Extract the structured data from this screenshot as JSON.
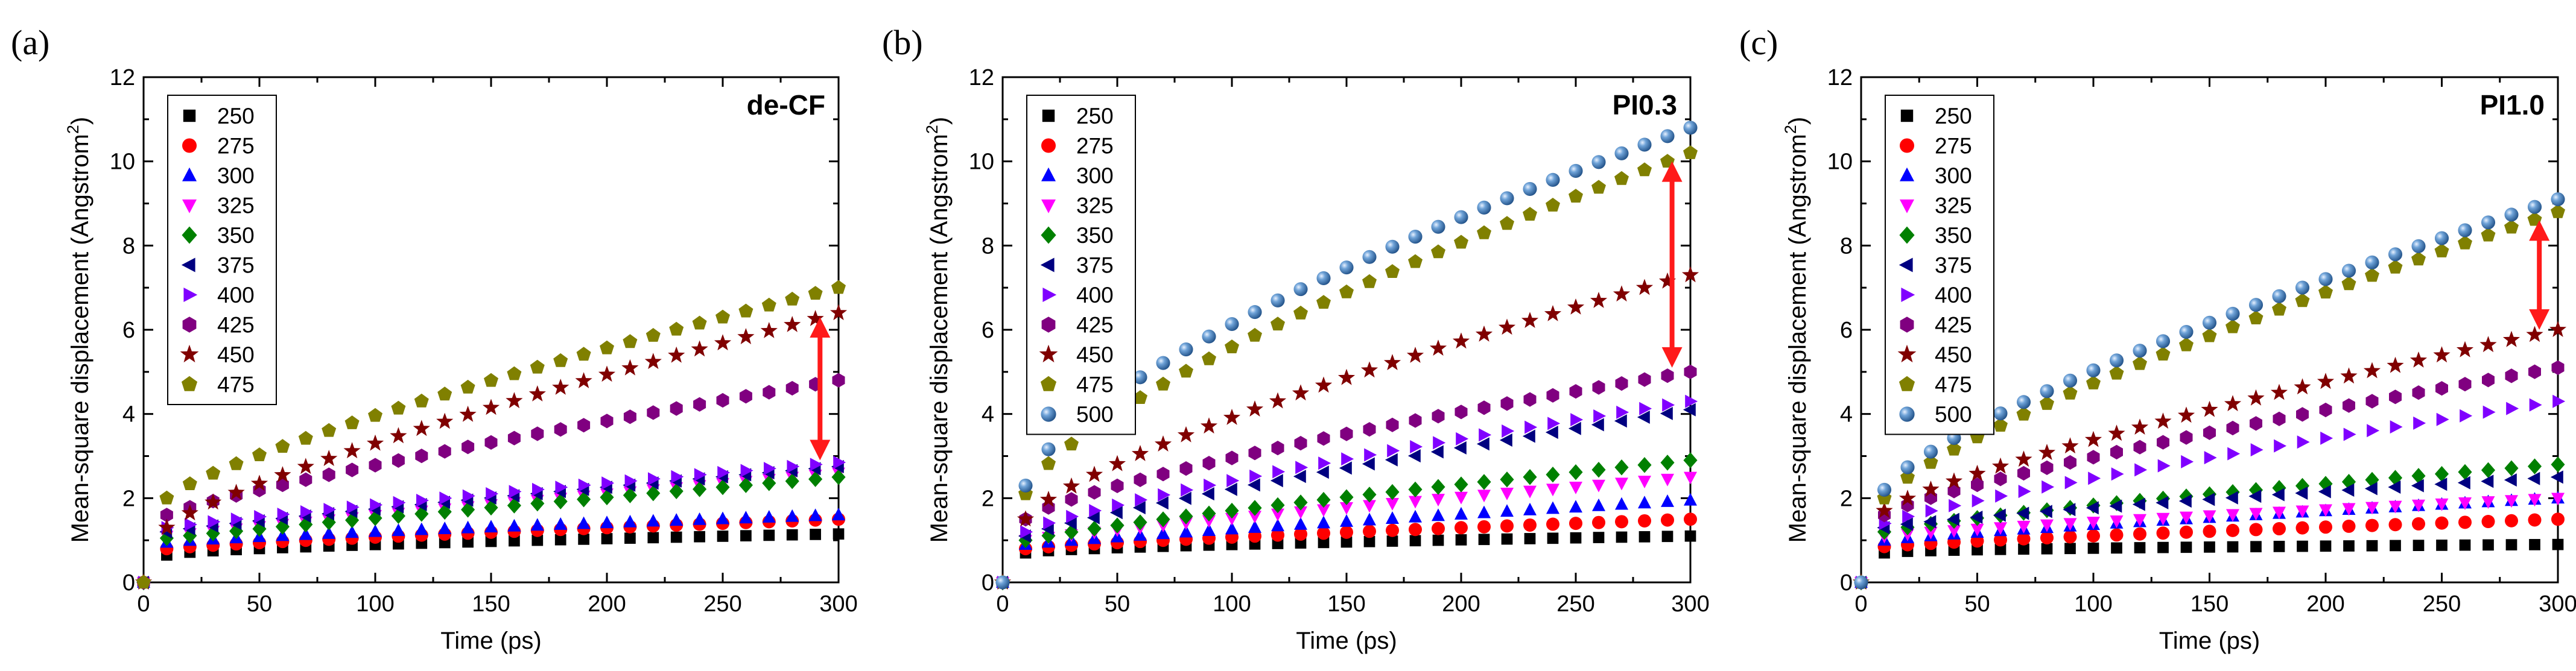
{
  "figure": {
    "panels": [
      {
        "letter": "(a)",
        "label": "de-CF",
        "arrow_color": "#ff1a1a",
        "arrow": {
          "x": 292,
          "y_low": 2.9,
          "y_high": 6.3
        }
      },
      {
        "letter": "(b)",
        "label": "PI0.3",
        "arrow_color": "#ff1a1a",
        "arrow": {
          "x": 292,
          "y_low": 5.1,
          "y_high": 10.0
        }
      },
      {
        "letter": "(c)",
        "label": "PI1.0",
        "arrow_color": "#ff1a1a",
        "arrow": {
          "x": 292,
          "y_low": 6.0,
          "y_high": 8.6
        }
      }
    ]
  },
  "chart_data": [
    {
      "type": "scatter",
      "title": "de-CF",
      "xlabel": "Time (ps)",
      "ylabel": "Mean-square displacement (Angstrom2)",
      "ylabel_main": "Mean-square displacement (Angstrom",
      "ylabel_sup": "2",
      "ylabel_close": ")",
      "xlim": [
        0,
        300
      ],
      "ylim": [
        0,
        12
      ],
      "xticks": [
        0,
        50,
        100,
        150,
        200,
        250,
        300
      ],
      "yticks": [
        0,
        2,
        4,
        6,
        8,
        10,
        12
      ],
      "legend": "top-left",
      "series": [
        {
          "name": "250",
          "marker": "square",
          "color": "#000000",
          "start": 0.65,
          "end": 1.15,
          "pow": 0.6
        },
        {
          "name": "275",
          "marker": "circle",
          "color": "#ff0000",
          "start": 0.8,
          "end": 1.5,
          "pow": 0.8
        },
        {
          "name": "300",
          "marker": "triangle-up",
          "color": "#0000ff",
          "start": 0.95,
          "end": 1.6,
          "pow": 0.8
        },
        {
          "name": "325",
          "marker": "triangle-down",
          "color": "#ff00ff",
          "start": 1.1,
          "end": 2.6,
          "pow": 0.95
        },
        {
          "name": "350",
          "marker": "diamond",
          "color": "#008000",
          "start": 1.05,
          "end": 2.5,
          "pow": 0.95
        },
        {
          "name": "375",
          "marker": "triangle-left",
          "color": "#000080",
          "start": 1.2,
          "end": 2.75,
          "pow": 0.9
        },
        {
          "name": "400",
          "marker": "triangle-right",
          "color": "#8000ff",
          "start": 1.3,
          "end": 2.85,
          "pow": 0.9
        },
        {
          "name": "425",
          "marker": "hexagon",
          "color": "#800080",
          "start": 1.6,
          "end": 4.8,
          "pow": 0.85
        },
        {
          "name": "450",
          "marker": "star",
          "color": "#800000",
          "start": 1.3,
          "end": 6.4,
          "pow": 0.8
        },
        {
          "name": "475",
          "marker": "pentagon",
          "color": "#808000",
          "start": 2.0,
          "end": 7.0,
          "pow": 0.8
        }
      ]
    },
    {
      "type": "scatter",
      "title": "PI0.3",
      "xlabel": "Time (ps)",
      "ylabel": "Mean-square displacement (Angstrom2)",
      "ylabel_main": "Mean-square displacement (Angstrom",
      "ylabel_sup": "2",
      "ylabel_close": ")",
      "xlim": [
        0,
        300
      ],
      "ylim": [
        0,
        12
      ],
      "xticks": [
        0,
        50,
        100,
        150,
        200,
        250,
        300
      ],
      "yticks": [
        0,
        2,
        4,
        6,
        8,
        10,
        12
      ],
      "legend": "top-left",
      "series": [
        {
          "name": "250",
          "marker": "square",
          "color": "#000000",
          "start": 0.7,
          "end": 1.1,
          "pow": 0.6
        },
        {
          "name": "275",
          "marker": "circle",
          "color": "#ff0000",
          "start": 0.8,
          "end": 1.5,
          "pow": 0.8
        },
        {
          "name": "300",
          "marker": "triangle-up",
          "color": "#0000ff",
          "start": 0.9,
          "end": 1.95,
          "pow": 0.9
        },
        {
          "name": "325",
          "marker": "triangle-down",
          "color": "#ff00ff",
          "start": 1.0,
          "end": 2.5,
          "pow": 0.9
        },
        {
          "name": "350",
          "marker": "diamond",
          "color": "#008000",
          "start": 1.0,
          "end": 2.9,
          "pow": 0.85
        },
        {
          "name": "375",
          "marker": "triangle-left",
          "color": "#000080",
          "start": 1.1,
          "end": 4.1,
          "pow": 0.85
        },
        {
          "name": "400",
          "marker": "triangle-right",
          "color": "#8000ff",
          "start": 1.2,
          "end": 4.3,
          "pow": 0.8
        },
        {
          "name": "425",
          "marker": "hexagon",
          "color": "#800080",
          "start": 1.5,
          "end": 5.0,
          "pow": 0.75
        },
        {
          "name": "450",
          "marker": "star",
          "color": "#800000",
          "start": 1.5,
          "end": 7.3,
          "pow": 0.75
        },
        {
          "name": "475",
          "marker": "pentagon",
          "color": "#808000",
          "start": 2.1,
          "end": 10.2,
          "pow": 0.72
        },
        {
          "name": "500",
          "marker": "sphere",
          "color": "#3f7fbf",
          "start": 2.3,
          "end": 10.8,
          "pow": 0.68
        }
      ]
    },
    {
      "type": "scatter",
      "title": "PI1.0",
      "xlabel": "Time (ps)",
      "ylabel": "Mean-square displacement (Angstrom2)",
      "ylabel_main": "Mean-square displacement (Angstrom",
      "ylabel_sup": "2",
      "ylabel_close": ")",
      "xlim": [
        0,
        300
      ],
      "ylim": [
        0,
        12
      ],
      "xticks": [
        0,
        50,
        100,
        150,
        200,
        250,
        300
      ],
      "yticks": [
        0,
        2,
        4,
        6,
        8,
        10,
        12
      ],
      "legend": "top-left",
      "series": [
        {
          "name": "250",
          "marker": "square",
          "color": "#000000",
          "start": 0.7,
          "end": 0.9,
          "pow": 0.5
        },
        {
          "name": "275",
          "marker": "circle",
          "color": "#ff0000",
          "start": 0.85,
          "end": 1.5,
          "pow": 0.8
        },
        {
          "name": "300",
          "marker": "triangle-up",
          "color": "#0000ff",
          "start": 1.0,
          "end": 2.0,
          "pow": 0.85
        },
        {
          "name": "325",
          "marker": "triangle-down",
          "color": "#ff00ff",
          "start": 1.1,
          "end": 2.0,
          "pow": 0.85
        },
        {
          "name": "350",
          "marker": "diamond",
          "color": "#008000",
          "start": 1.2,
          "end": 2.8,
          "pow": 0.8
        },
        {
          "name": "375",
          "marker": "triangle-left",
          "color": "#000080",
          "start": 1.3,
          "end": 2.5,
          "pow": 0.8
        },
        {
          "name": "400",
          "marker": "triangle-right",
          "color": "#8000ff",
          "start": 1.4,
          "end": 4.3,
          "pow": 0.85
        },
        {
          "name": "425",
          "marker": "hexagon",
          "color": "#800080",
          "start": 1.6,
          "end": 5.1,
          "pow": 0.8
        },
        {
          "name": "450",
          "marker": "star",
          "color": "#800000",
          "start": 1.7,
          "end": 6.0,
          "pow": 0.8
        },
        {
          "name": "475",
          "marker": "pentagon",
          "color": "#808000",
          "start": 2.0,
          "end": 8.8,
          "pow": 0.78
        },
        {
          "name": "500",
          "marker": "sphere",
          "color": "#3f7fbf",
          "start": 2.2,
          "end": 9.1,
          "pow": 0.76
        }
      ]
    }
  ]
}
